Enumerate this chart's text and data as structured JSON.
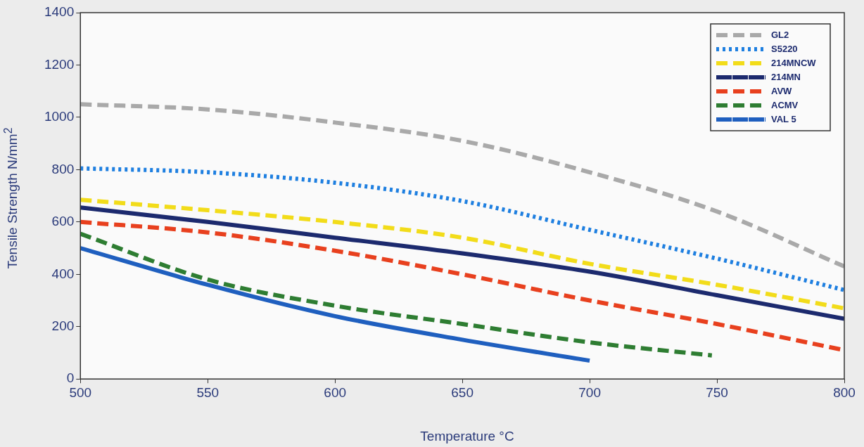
{
  "chart_data": {
    "type": "line",
    "xlabel": "Temperature °C",
    "ylabel": "Tensile Strength N/mm$^{2}$",
    "xlim": [
      500,
      800
    ],
    "xticks": [
      500,
      550,
      600,
      650,
      700,
      750,
      800
    ],
    "ylim": [
      0,
      1400
    ],
    "yticks": [
      0,
      200,
      400,
      600,
      800,
      1000,
      1200,
      1400
    ],
    "grid": false,
    "legend": "top right",
    "marker": "none",
    "series": [
      {
        "name": "GL2",
        "color": "#a9a9a9",
        "line_style": "dashed",
        "x": [
          500,
          550,
          600,
          650,
          700,
          750,
          800
        ],
        "values": [
          1050,
          1030,
          980,
          910,
          790,
          640,
          430
        ]
      },
      {
        "name": "S5220",
        "color": "#1e7fe0",
        "line_style": "dotted",
        "x": [
          500,
          550,
          600,
          650,
          700,
          750,
          800
        ],
        "values": [
          805,
          790,
          750,
          680,
          570,
          460,
          340
        ]
      },
      {
        "name": "214MNCW",
        "color": "#f2dc1a",
        "line_style": "dashed",
        "x": [
          500,
          550,
          600,
          650,
          700,
          750,
          800
        ],
        "values": [
          685,
          645,
          600,
          540,
          440,
          360,
          270
        ]
      },
      {
        "name": "214MN",
        "color": "#1c2a6e",
        "line_style": "solid",
        "x": [
          500,
          550,
          600,
          650,
          700,
          750,
          800
        ],
        "values": [
          655,
          600,
          540,
          480,
          410,
          320,
          230
        ]
      },
      {
        "name": "AVW",
        "color": "#e8401e",
        "line_style": "dashed",
        "x": [
          500,
          550,
          600,
          650,
          700,
          750,
          800
        ],
        "values": [
          600,
          560,
          490,
          400,
          300,
          210,
          110
        ]
      },
      {
        "name": "ACMV",
        "color": "#2e7d32",
        "line_style": "dashed",
        "x": [
          500,
          550,
          600,
          650,
          700,
          748
        ],
        "values": [
          555,
          380,
          280,
          210,
          140,
          90
        ]
      },
      {
        "name": "VAL 5",
        "color": "#1f5fbf",
        "line_style": "solid",
        "x": [
          500,
          550,
          600,
          650,
          700
        ],
        "values": [
          500,
          360,
          240,
          150,
          70
        ]
      }
    ]
  }
}
